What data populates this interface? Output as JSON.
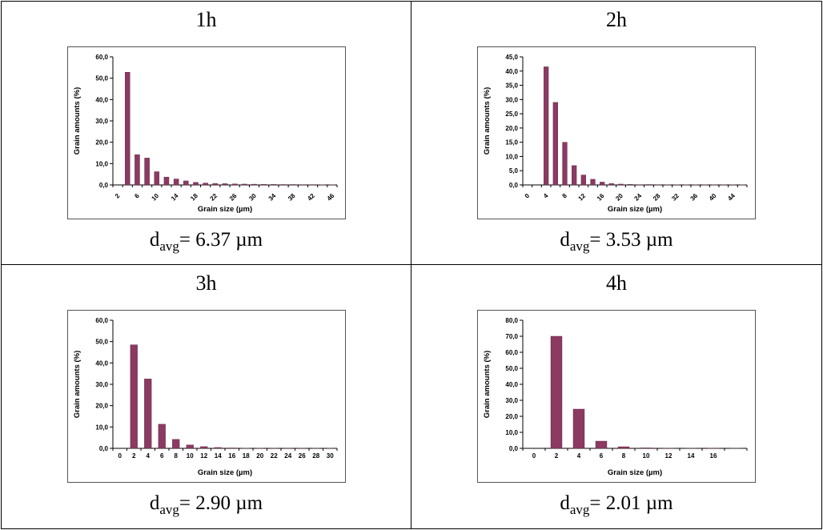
{
  "chart_data": [
    {
      "type": "bar",
      "title": "1h",
      "xlabel": "Grain size (µm)",
      "ylabel": "Grain amounts (%)",
      "ylim": [
        0,
        60
      ],
      "yticks": [
        "0,0",
        "10,0",
        "20,0",
        "30,0",
        "40,0",
        "50,0",
        "60,0"
      ],
      "categories": [
        2,
        4,
        6,
        8,
        10,
        12,
        14,
        16,
        18,
        20,
        22,
        24,
        26,
        28,
        30,
        32,
        34,
        36,
        38,
        40,
        42,
        44,
        46
      ],
      "xtick_labels": [
        "2",
        "6",
        "10",
        "14",
        "18",
        "22",
        "26",
        "30",
        "34",
        "38",
        "42",
        "46"
      ],
      "xtick_positions": [
        2,
        6,
        10,
        14,
        18,
        22,
        26,
        30,
        34,
        38,
        42,
        46
      ],
      "values": [
        0,
        52.8,
        14.2,
        12.6,
        6.2,
        3.7,
        2.8,
        1.9,
        1.2,
        0.9,
        0.7,
        0.6,
        0.5,
        0.4,
        0.35,
        0.3,
        0.25,
        0.2,
        0.2,
        0.15,
        0.15,
        0.1,
        0.1
      ],
      "color": "#8B3A62",
      "grid": false,
      "avg_label": "= 6.37 µm"
    },
    {
      "type": "bar",
      "title": "2h",
      "xlabel": "Grain size (µm)",
      "ylabel": "Grain amounts (%)",
      "ylim": [
        0,
        45
      ],
      "yticks": [
        "0,0",
        "5,0",
        "10,0",
        "15,0",
        "20,0",
        "25,0",
        "30,0",
        "35,0",
        "40,0",
        "45,0"
      ],
      "categories": [
        0,
        2,
        4,
        6,
        8,
        10,
        12,
        14,
        16,
        18,
        20,
        22,
        24,
        26,
        28,
        30,
        32,
        34,
        36,
        38,
        40,
        42,
        44,
        46
      ],
      "xtick_labels": [
        "0",
        "4",
        "8",
        "12",
        "16",
        "20",
        "24",
        "28",
        "32",
        "36",
        "40",
        "44"
      ],
      "xtick_positions": [
        0,
        4,
        8,
        12,
        16,
        20,
        24,
        28,
        32,
        36,
        40,
        44
      ],
      "values": [
        0,
        0,
        41.5,
        29,
        15,
        6.8,
        3.5,
        2.0,
        1.0,
        0.5,
        0.3,
        0.2,
        0.1,
        0.15,
        0.1,
        0.05,
        0.05,
        0.05,
        0.05,
        0.05,
        0.05,
        0.05,
        0.05,
        0.05
      ],
      "color": "#8B3A62",
      "grid": false,
      "avg_label": "= 3.53 µm"
    },
    {
      "type": "bar",
      "title": "3h",
      "xlabel": "Grain size (µm)",
      "ylabel": "Grain amounts (%)",
      "ylim": [
        0,
        60
      ],
      "yticks": [
        "0,0",
        "10,0",
        "20,0",
        "30,0",
        "40,0",
        "50,0",
        "60,0"
      ],
      "categories": [
        0,
        2,
        4,
        6,
        8,
        10,
        12,
        14,
        16,
        18,
        20,
        22,
        24,
        26,
        28,
        30
      ],
      "xtick_labels": [
        "0",
        "2",
        "4",
        "6",
        "8",
        "10",
        "12",
        "14",
        "16",
        "18",
        "20",
        "22",
        "24",
        "26",
        "28",
        "30"
      ],
      "xtick_positions": [
        0,
        2,
        4,
        6,
        8,
        10,
        12,
        14,
        16,
        18,
        20,
        22,
        24,
        26,
        28,
        30
      ],
      "values": [
        0,
        48.5,
        32.5,
        11.3,
        4.2,
        1.6,
        0.8,
        0.4,
        0.2,
        0.1,
        0.1,
        0.05,
        0.05,
        0.05,
        0.05,
        0.05
      ],
      "color": "#8B3A62",
      "grid": false,
      "avg_label": "= 2.90 µm"
    },
    {
      "type": "bar",
      "title": "4h",
      "xlabel": "Grain size (µm)",
      "ylabel": "Grain amounts (%)",
      "ylim": [
        0,
        80
      ],
      "yticks": [
        "0,0",
        "10,0",
        "20,0",
        "30,0",
        "40,0",
        "50,0",
        "60,0",
        "70,0",
        "80,0"
      ],
      "categories": [
        0,
        2,
        4,
        6,
        8,
        10,
        12,
        14,
        16,
        18
      ],
      "xtick_labels": [
        "0",
        "2",
        "4",
        "6",
        "8",
        "10",
        "12",
        "14",
        "16"
      ],
      "xtick_positions": [
        0,
        2,
        4,
        6,
        8,
        10,
        12,
        14,
        16
      ],
      "values": [
        0,
        70,
        24.5,
        4.5,
        1.0,
        0.3,
        0.1,
        0.05,
        0.05,
        0.05
      ],
      "color": "#8B3A62",
      "grid": false,
      "avg_label": "= 2.01 µm"
    }
  ],
  "avg_symbol": {
    "base": "d",
    "sub": "avg"
  }
}
